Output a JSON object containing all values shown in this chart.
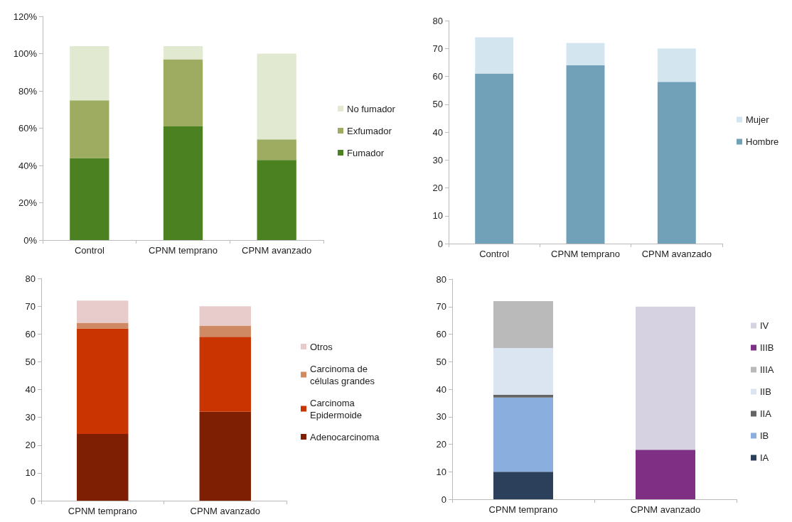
{
  "chart_data": [
    {
      "type": "bar",
      "stacked": true,
      "categories": [
        "Control",
        "CPNM temprano",
        "CPNM avanzado"
      ],
      "ylim": [
        0,
        120
      ],
      "yticks": [
        {
          "value": 0,
          "label": "0%"
        },
        {
          "value": 20,
          "label": "20%"
        },
        {
          "value": 40,
          "label": "40%"
        },
        {
          "value": 60,
          "label": "60%"
        },
        {
          "value": 80,
          "label": "80%"
        },
        {
          "value": 100,
          "label": "100%"
        },
        {
          "value": 120,
          "label": "120%"
        }
      ],
      "grid": false,
      "legend": "right",
      "series": [
        {
          "name": "Fumador",
          "color": "#4b8120",
          "values": [
            44,
            61,
            43
          ]
        },
        {
          "name": "Exfumador",
          "color": "#9dac61",
          "values": [
            31,
            36,
            11
          ]
        },
        {
          "name": "No fumador",
          "color": "#e1e9d1",
          "values": [
            29,
            7,
            46
          ]
        }
      ]
    },
    {
      "type": "bar",
      "stacked": true,
      "categories": [
        "Control",
        "CPNM temprano",
        "CPNM avanzado"
      ],
      "ylim": [
        0,
        80
      ],
      "yticks": [
        0,
        10,
        20,
        30,
        40,
        50,
        60,
        70,
        80
      ],
      "grid": false,
      "legend": "right",
      "series": [
        {
          "name": "Hombre",
          "color": "#70a1b8",
          "values": [
            61,
            64,
            58
          ]
        },
        {
          "name": "Mujer",
          "color": "#d3e6ef",
          "values": [
            13,
            8,
            12
          ]
        }
      ]
    },
    {
      "type": "bar",
      "stacked": true,
      "categories": [
        "CPNM temprano",
        "CPNM avanzado"
      ],
      "ylim": [
        0,
        80
      ],
      "yticks": [
        0,
        10,
        20,
        30,
        40,
        50,
        60,
        70,
        80
      ],
      "grid": false,
      "legend": "right",
      "series": [
        {
          "name": "Adenocarcinoma",
          "color": "#7e1e02",
          "values": [
            24,
            32
          ]
        },
        {
          "name": "Carcinoma Epidermoide",
          "color": "#c93400",
          "values": [
            38,
            27
          ]
        },
        {
          "name": "Carcinoma de células grandes",
          "color": "#cf8a64",
          "values": [
            2,
            4
          ]
        },
        {
          "name": "Otros",
          "color": "#e8cccb",
          "values": [
            8,
            7
          ]
        }
      ]
    },
    {
      "type": "bar",
      "stacked": true,
      "categories": [
        "CPNM temprano",
        "CPNM avanzado"
      ],
      "ylim": [
        0,
        80
      ],
      "yticks": [
        0,
        10,
        20,
        30,
        40,
        50,
        60,
        70,
        80
      ],
      "grid": false,
      "legend": "right",
      "series": [
        {
          "name": "IA",
          "color": "#2c405c",
          "values": [
            10,
            null
          ]
        },
        {
          "name": "IB",
          "color": "#8aafdf",
          "values": [
            27,
            null
          ]
        },
        {
          "name": "IIA",
          "color": "#646464",
          "values": [
            1,
            null
          ]
        },
        {
          "name": "IIB",
          "color": "#dbe5f1",
          "values": [
            17,
            null
          ]
        },
        {
          "name": "IIIA",
          "color": "#bababa",
          "values": [
            17,
            null
          ]
        },
        {
          "name": "IIIB",
          "color": "#803084",
          "values": [
            null,
            18
          ]
        },
        {
          "name": "IV",
          "color": "#d7d2e2",
          "values": [
            null,
            52
          ]
        }
      ]
    }
  ]
}
